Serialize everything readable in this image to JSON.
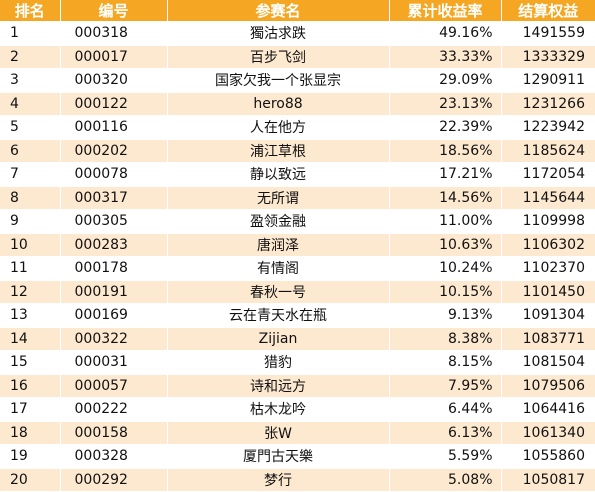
{
  "headers": {
    "rank": "排名",
    "code": "编号",
    "name": "参赛名",
    "return": "累计收益率",
    "equity": "结算权益"
  },
  "colors": {
    "header_bg": "#f5a623",
    "header_text": "#ffffff",
    "row_alt_bg": "#fde9d0",
    "row_bg": "#ffffff"
  },
  "rows": [
    {
      "rank": "1",
      "code": "000318",
      "name": "獨沽求跌",
      "return": "49.16%",
      "equity": "1491559"
    },
    {
      "rank": "2",
      "code": "000017",
      "name": "百步飞剑",
      "return": "33.33%",
      "equity": "1333329"
    },
    {
      "rank": "3",
      "code": "000320",
      "name": "国家欠我一个张显宗",
      "return": "29.09%",
      "equity": "1290911"
    },
    {
      "rank": "4",
      "code": "000122",
      "name": "hero88",
      "return": "23.13%",
      "equity": "1231266"
    },
    {
      "rank": "5",
      "code": "000116",
      "name": "人在他方",
      "return": "22.39%",
      "equity": "1223942"
    },
    {
      "rank": "6",
      "code": "000202",
      "name": "浦江草根",
      "return": "18.56%",
      "equity": "1185624"
    },
    {
      "rank": "7",
      "code": "000078",
      "name": "静以致远",
      "return": "17.21%",
      "equity": "1172054"
    },
    {
      "rank": "8",
      "code": "000317",
      "name": "无所谓",
      "return": "14.56%",
      "equity": "1145644"
    },
    {
      "rank": "9",
      "code": "000305",
      "name": "盈领金融",
      "return": "11.00%",
      "equity": "1109998"
    },
    {
      "rank": "10",
      "code": "000283",
      "name": "唐润泽",
      "return": "10.63%",
      "equity": "1106302"
    },
    {
      "rank": "11",
      "code": "000178",
      "name": "有情阁",
      "return": "10.24%",
      "equity": "1102370"
    },
    {
      "rank": "12",
      "code": "000191",
      "name": "春秋一号",
      "return": "10.15%",
      "equity": "1101450"
    },
    {
      "rank": "13",
      "code": "000169",
      "name": "云在青天水在瓶",
      "return": "9.13%",
      "equity": "1091304"
    },
    {
      "rank": "14",
      "code": "000322",
      "name": "Zijian",
      "return": "8.38%",
      "equity": "1083771"
    },
    {
      "rank": "15",
      "code": "000031",
      "name": "猎豹",
      "return": "8.15%",
      "equity": "1081504"
    },
    {
      "rank": "16",
      "code": "000057",
      "name": "诗和远方",
      "return": "7.95%",
      "equity": "1079506"
    },
    {
      "rank": "17",
      "code": "000222",
      "name": "枯木龙吟",
      "return": "6.44%",
      "equity": "1064416"
    },
    {
      "rank": "18",
      "code": "000158",
      "name": "张W",
      "return": "6.13%",
      "equity": "1061340"
    },
    {
      "rank": "19",
      "code": "000328",
      "name": "厦門古天樂",
      "return": "5.59%",
      "equity": "1055860"
    },
    {
      "rank": "20",
      "code": "000292",
      "name": "梦行",
      "return": "5.08%",
      "equity": "1050817"
    }
  ]
}
